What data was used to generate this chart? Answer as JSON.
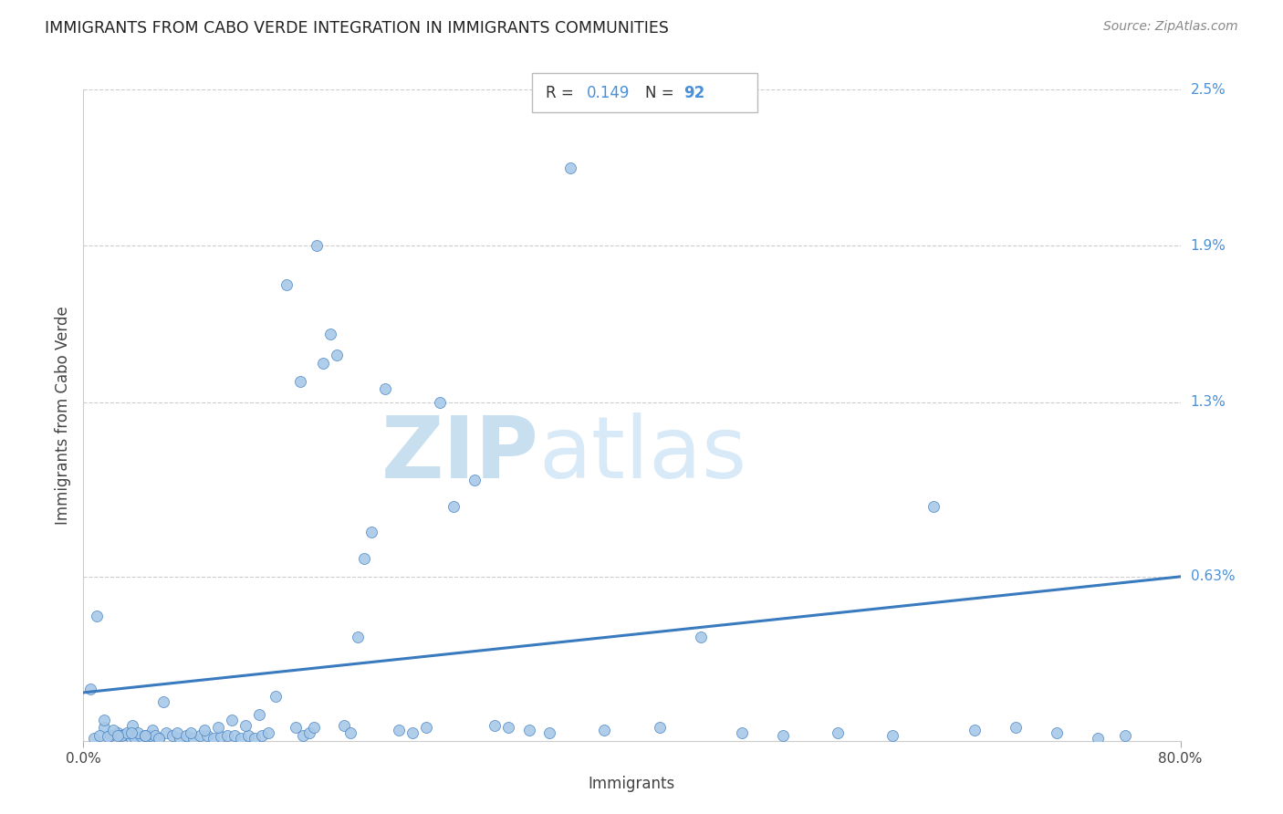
{
  "title": "IMMIGRANTS FROM CABO VERDE INTEGRATION IN IMMIGRANTS COMMUNITIES",
  "source": "Source: ZipAtlas.com",
  "xlabel": "Immigrants",
  "ylabel": "Immigrants from Cabo Verde",
  "R": 0.149,
  "N": 92,
  "xlim": [
    0.0,
    0.8
  ],
  "ylim": [
    0.0,
    0.025
  ],
  "scatter_color": "#a8c8e8",
  "line_color": "#3a7bbf",
  "title_color": "#222222",
  "annotation_color": "#4a90d9",
  "watermark_zip_color": "#c8dff0",
  "watermark_atlas_color": "#d8eaf8",
  "background_color": "#ffffff",
  "grid_color": "#cccccc",
  "spine_color": "#cccccc",
  "right_labels": {
    "2.5%": 0.025,
    "1.9%": 0.019,
    "1.3%": 0.013,
    "0.63%": 0.0063
  },
  "line_x0": 0.0,
  "line_y0": 0.00185,
  "line_x1": 0.8,
  "line_y1": 0.0063,
  "scatter_x": [
    0.01,
    0.015,
    0.02,
    0.025,
    0.008,
    0.012,
    0.018,
    0.022,
    0.03,
    0.035,
    0.028,
    0.032,
    0.038,
    0.042,
    0.048,
    0.036,
    0.04,
    0.045,
    0.05,
    0.055,
    0.052,
    0.06,
    0.058,
    0.065,
    0.07,
    0.068,
    0.075,
    0.08,
    0.085,
    0.078,
    0.09,
    0.095,
    0.088,
    0.1,
    0.105,
    0.098,
    0.11,
    0.115,
    0.108,
    0.12,
    0.125,
    0.118,
    0.13,
    0.135,
    0.128,
    0.14,
    0.148,
    0.155,
    0.16,
    0.165,
    0.158,
    0.17,
    0.175,
    0.168,
    0.18,
    0.185,
    0.19,
    0.195,
    0.2,
    0.205,
    0.21,
    0.22,
    0.23,
    0.24,
    0.25,
    0.26,
    0.27,
    0.285,
    0.3,
    0.31,
    0.325,
    0.34,
    0.355,
    0.38,
    0.42,
    0.45,
    0.48,
    0.51,
    0.55,
    0.59,
    0.62,
    0.65,
    0.68,
    0.71,
    0.74,
    0.76,
    0.005,
    0.015,
    0.025,
    0.035,
    0.045,
    0.055
  ],
  "scatter_y": [
    0.0048,
    0.0005,
    0.0002,
    0.0003,
    0.0001,
    0.0002,
    0.00015,
    0.0004,
    0.00025,
    0.0001,
    0.0002,
    0.0003,
    0.0001,
    0.00015,
    0.0002,
    0.0006,
    0.0003,
    0.0002,
    0.0004,
    0.0001,
    0.0002,
    0.0003,
    0.0015,
    0.0002,
    0.0001,
    0.0003,
    0.0002,
    0.0001,
    0.0002,
    0.0003,
    0.0002,
    0.0001,
    0.0004,
    0.00015,
    0.0002,
    0.0005,
    0.0002,
    0.0001,
    0.0008,
    0.0002,
    0.0001,
    0.0006,
    0.0002,
    0.0003,
    0.001,
    0.0017,
    0.0175,
    0.0005,
    0.0002,
    0.0003,
    0.0138,
    0.019,
    0.0145,
    0.0005,
    0.0156,
    0.0148,
    0.0006,
    0.0003,
    0.004,
    0.007,
    0.008,
    0.0135,
    0.0004,
    0.0003,
    0.0005,
    0.013,
    0.009,
    0.01,
    0.0006,
    0.0005,
    0.0004,
    0.0003,
    0.022,
    0.0004,
    0.0005,
    0.004,
    0.0003,
    0.0002,
    0.0003,
    0.0002,
    0.009,
    0.0004,
    0.0005,
    0.0003,
    0.0001,
    0.0002,
    0.002,
    0.0008,
    0.0002,
    0.0003,
    0.0002,
    0.0001
  ]
}
